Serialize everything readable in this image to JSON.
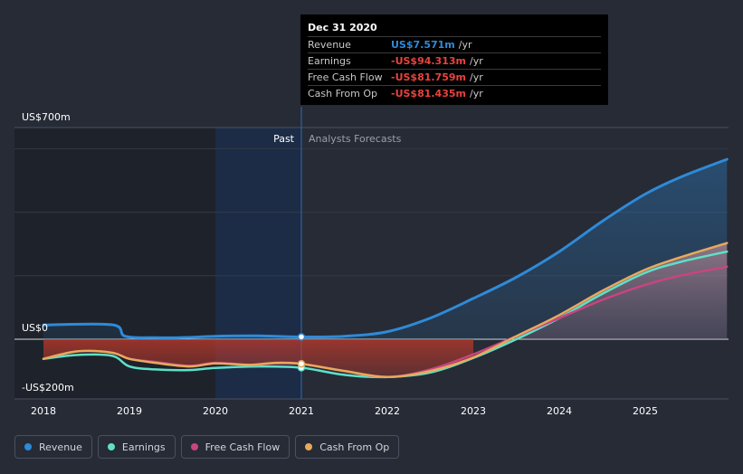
{
  "chart_data": {
    "type": "line",
    "y_unit_labels": {
      "top": "US$700m",
      "zero": "US$0",
      "bottom": "-US$200m"
    },
    "ylim": [
      -200,
      700
    ],
    "xlim": [
      2018,
      2025.95
    ],
    "x_ticks": [
      "2018",
      "2019",
      "2020",
      "2021",
      "2022",
      "2023",
      "2024",
      "2025"
    ],
    "x_tick_values": [
      2018,
      2019,
      2020,
      2021,
      2022,
      2023,
      2024,
      2025
    ],
    "divider_x": 2021,
    "past_label": "Past",
    "forecast_label": "Analysts Forecasts",
    "highlight_start": 2020,
    "series": [
      {
        "name": "Revenue",
        "color": "#2f8ad8",
        "marker": true,
        "fill": true,
        "points": [
          [
            2018,
            47
          ],
          [
            2018.8,
            48
          ],
          [
            2018.95,
            10
          ],
          [
            2019.3,
            5
          ],
          [
            2019.7,
            6
          ],
          [
            2020,
            10
          ],
          [
            2020.5,
            11
          ],
          [
            2021,
            7.571
          ],
          [
            2021.5,
            10
          ],
          [
            2022,
            25
          ],
          [
            2022.5,
            70
          ],
          [
            2023,
            135
          ],
          [
            2023.5,
            205
          ],
          [
            2024,
            290
          ],
          [
            2024.5,
            390
          ],
          [
            2025,
            480
          ],
          [
            2025.4,
            535
          ],
          [
            2025.95,
            595
          ]
        ]
      },
      {
        "name": "Earnings",
        "color": "#5fe0c8",
        "marker": true,
        "fill": false,
        "points": [
          [
            2018,
            -65
          ],
          [
            2018.4,
            -52
          ],
          [
            2018.8,
            -55
          ],
          [
            2019,
            -90
          ],
          [
            2019.3,
            -100
          ],
          [
            2019.7,
            -102
          ],
          [
            2020,
            -95
          ],
          [
            2020.5,
            -90
          ],
          [
            2021,
            -94.313
          ],
          [
            2021.5,
            -118
          ],
          [
            2022,
            -125
          ],
          [
            2022.5,
            -110
          ],
          [
            2023,
            -62
          ],
          [
            2023.5,
            0
          ],
          [
            2024,
            70
          ],
          [
            2024.5,
            150
          ],
          [
            2025,
            220
          ],
          [
            2025.4,
            255
          ],
          [
            2025.95,
            290
          ]
        ]
      },
      {
        "name": "Free Cash Flow",
        "color": "#c8457f",
        "marker": false,
        "fill": true,
        "points": [
          [
            2018,
            -65
          ],
          [
            2018.4,
            -40
          ],
          [
            2018.8,
            -45
          ],
          [
            2019,
            -65
          ],
          [
            2019.3,
            -75
          ],
          [
            2019.7,
            -88
          ],
          [
            2020,
            -78
          ],
          [
            2020.4,
            -85
          ],
          [
            2020.7,
            -80
          ],
          [
            2021,
            -81.759
          ],
          [
            2021.5,
            -105
          ],
          [
            2022,
            -125
          ],
          [
            2022.5,
            -100
          ],
          [
            2023,
            -50
          ],
          [
            2023.5,
            10
          ],
          [
            2024,
            70
          ],
          [
            2024.5,
            130
          ],
          [
            2025,
            180
          ],
          [
            2025.4,
            210
          ],
          [
            2025.95,
            240
          ]
        ]
      },
      {
        "name": "Cash From Op",
        "color": "#e8a95c",
        "marker": true,
        "fill": true,
        "points": [
          [
            2018,
            -65
          ],
          [
            2018.4,
            -40
          ],
          [
            2018.8,
            -45
          ],
          [
            2019,
            -65
          ],
          [
            2019.3,
            -78
          ],
          [
            2019.7,
            -90
          ],
          [
            2020,
            -80
          ],
          [
            2020.4,
            -85
          ],
          [
            2020.7,
            -78
          ],
          [
            2021,
            -81.435
          ],
          [
            2021.5,
            -105
          ],
          [
            2022,
            -125
          ],
          [
            2022.5,
            -105
          ],
          [
            2023,
            -60
          ],
          [
            2023.5,
            10
          ],
          [
            2024,
            80
          ],
          [
            2024.5,
            160
          ],
          [
            2025,
            230
          ],
          [
            2025.4,
            270
          ],
          [
            2025.95,
            318
          ]
        ]
      }
    ]
  },
  "tooltip": {
    "date": "Dec 31 2020",
    "unit": "/yr",
    "rows": [
      {
        "label": "Revenue",
        "value": "US$7.571m",
        "color": "#2f8ad8"
      },
      {
        "label": "Earnings",
        "value": "-US$94.313m",
        "color": "#e8433c"
      },
      {
        "label": "Free Cash Flow",
        "value": "-US$81.759m",
        "color": "#e8433c"
      },
      {
        "label": "Cash From Op",
        "value": "-US$81.435m",
        "color": "#e8433c"
      }
    ]
  },
  "legend": [
    {
      "label": "Revenue",
      "color": "#2f8ad8"
    },
    {
      "label": "Earnings",
      "color": "#5fe0c8"
    },
    {
      "label": "Free Cash Flow",
      "color": "#c8457f"
    },
    {
      "label": "Cash From Op",
      "color": "#e8a95c"
    }
  ]
}
